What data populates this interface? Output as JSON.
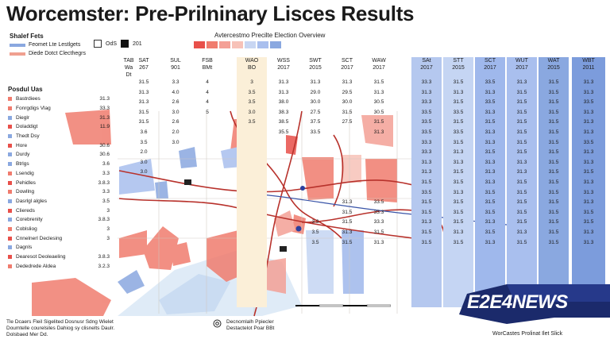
{
  "header": {
    "title": "Worcemster: Pre-Prilninary Lisces Results"
  },
  "legend": {
    "title": "Shalef Fets",
    "items": [
      {
        "label": "Feomet Lte Lestlgets",
        "color": "#8aa8e0"
      },
      {
        "label": "Diede Dotct Clecthegrs",
        "color": "#f0a090"
      }
    ]
  },
  "mini_legend": {
    "on_label": "OdS",
    "count_label": "201"
  },
  "overview": {
    "title": "Avtercestmo Precilte Election Overview",
    "swatches": [
      "#e8504a",
      "#f07c6e",
      "#f4a096",
      "#f7c2b8",
      "#c8d6f2",
      "#a9bfee",
      "#8aa8e0"
    ]
  },
  "columns": [
    {
      "head": [
        "TAB",
        "Wa",
        "Dt"
      ],
      "color": "#ffffff"
    },
    {
      "head": [
        "SAT",
        "267"
      ],
      "color": "#ffffff"
    },
    {
      "head": [
        "SUL",
        "901"
      ],
      "color": "#ffffff"
    },
    {
      "head": [
        "FSB",
        "BMt"
      ],
      "color": "#ffffff"
    },
    {
      "head": [
        "WAO",
        "BO"
      ],
      "color": "#fbefd8"
    },
    {
      "head": [
        "WSS",
        "2017"
      ],
      "color": "#ffffff"
    },
    {
      "head": [
        "SWT",
        "2015"
      ],
      "color": "#ffffff"
    },
    {
      "head": [
        "SCT",
        "2017"
      ],
      "color": "#ffffff"
    },
    {
      "head": [
        "WAW",
        "2017"
      ],
      "color": "#ffffff"
    },
    {
      "head": [
        "SAt",
        "2017"
      ],
      "color": "#b5c8ef"
    },
    {
      "head": [
        "STT",
        "2015"
      ],
      "color": "#c5d5f3"
    },
    {
      "head": [
        "SCT",
        "2017"
      ],
      "color": "#9fb8ec"
    },
    {
      "head": [
        "WUT",
        "2017"
      ],
      "color": "#a9bfee"
    },
    {
      "head": [
        "WAT",
        "2015"
      ],
      "color": "#8aa8e0"
    },
    {
      "head": [
        "WBT",
        "2011"
      ],
      "color": "#7c9cdc"
    }
  ],
  "rows": [
    [
      "",
      "31.5",
      "3.3",
      "4",
      "3",
      "31.3",
      "31.3",
      "31.3",
      "31.5",
      "33.3",
      "31.5",
      "33.5",
      "31.3",
      "31.5",
      "31.3"
    ],
    [
      "",
      "31.3",
      "4.0",
      "4",
      "3.5",
      "31.3",
      "29.0",
      "29.5",
      "31.3",
      "31.3",
      "31.3",
      "31.3",
      "31.5",
      "31.5",
      "31.3"
    ],
    [
      "",
      "31.3",
      "2.6",
      "4",
      "3.5",
      "38.0",
      "30.0",
      "30.0",
      "30.5",
      "33.3",
      "31.5",
      "33.5",
      "31.5",
      "31.5",
      "33.5"
    ],
    [
      "",
      "31.5",
      "3.0",
      "5",
      "3.0",
      "38.3",
      "27.5",
      "31.5",
      "30.5",
      "33.5",
      "33.5",
      "31.3",
      "31.5",
      "31.5",
      "31.3"
    ],
    [
      "",
      "31.5",
      "2.6",
      "",
      "3.5",
      "38.5",
      "37.5",
      "27.5",
      "31.5",
      "33.5",
      "31.5",
      "31.5",
      "31.5",
      "31.5",
      "31.3"
    ],
    [
      "",
      "3.6",
      "2.0",
      "",
      "",
      "35.5",
      "33.5",
      "",
      "31.3",
      "33.5",
      "33.5",
      "31.3",
      "31.5",
      "31.5",
      "31.3"
    ],
    [
      "",
      "3.5",
      "3.0",
      "",
      "",
      "",
      "",
      "",
      "",
      "33.3",
      "31.5",
      "31.3",
      "31.5",
      "31.5",
      "33.5"
    ],
    [
      "",
      "2.0",
      "",
      "",
      "",
      "",
      "",
      "",
      "",
      "33.3",
      "31.3",
      "31.5",
      "31.5",
      "31.5",
      "31.3"
    ],
    [
      "",
      "3.0",
      "",
      "",
      "",
      "",
      "",
      "",
      "",
      "31.3",
      "31.3",
      "31.3",
      "31.3",
      "31.5",
      "31.3"
    ],
    [
      "",
      "3.0",
      "",
      "",
      "",
      "",
      "",
      "",
      "",
      "31.3",
      "31.5",
      "31.3",
      "31.3",
      "31.5",
      "31.5"
    ],
    [
      "",
      "",
      "",
      "",
      "",
      "",
      "",
      "",
      "",
      "31.5",
      "31.5",
      "31.3",
      "31.5",
      "31.5",
      "31.3"
    ],
    [
      "",
      "",
      "",
      "",
      "",
      "",
      "",
      "",
      "",
      "33.5",
      "31.3",
      "31.5",
      "31.5",
      "31.5",
      "31.3"
    ],
    [
      "",
      "",
      "",
      "",
      "",
      "",
      "",
      "31.3",
      "33.5",
      "31.5",
      "31.5",
      "31.5",
      "31.5",
      "31.5",
      "31.3"
    ],
    [
      "",
      "",
      "",
      "",
      "",
      "",
      "",
      "31.5",
      "33.3",
      "31.5",
      "31.5",
      "31.5",
      "31.5",
      "31.5",
      "31.5"
    ],
    [
      "",
      "",
      "",
      "",
      "",
      "",
      "3.3",
      "31.5",
      "33.3",
      "31.3",
      "31.5",
      "31.3",
      "31.5",
      "31.5",
      "31.5"
    ],
    [
      "",
      "",
      "",
      "",
      "",
      "",
      "3.5",
      "31.3",
      "31.5",
      "31.5",
      "31.3",
      "31.5",
      "31.3",
      "31.5",
      "31.3"
    ],
    [
      "",
      "",
      "",
      "",
      "",
      "",
      "3.5",
      "31.5",
      "31.3",
      "31.5",
      "31.5",
      "31.3",
      "31.5",
      "31.5",
      "31.3"
    ]
  ],
  "sidebar": {
    "title": "Posdul Uas",
    "rows": [
      {
        "label": "Bastrdiees",
        "value": "31.3",
        "color": "#f07c6e"
      },
      {
        "label": "Fonrgdigs Vlag",
        "value": "33.3",
        "color": "#f07c6e"
      },
      {
        "label": "Dieglr",
        "value": "31.3",
        "color": "#8aa8e0"
      },
      {
        "label": "Doladdigt",
        "value": "11.9",
        "color": "#e8504a"
      },
      {
        "label": "Thedt Dsy",
        "value": "",
        "color": "#8aa8e0"
      },
      {
        "label": "Hore",
        "value": "30.6",
        "color": "#e8504a"
      },
      {
        "label": "Durdy",
        "value": "30.6",
        "color": "#8aa8e0"
      },
      {
        "label": "Btrlgs",
        "value": "3.6",
        "color": "#8aa8e0"
      },
      {
        "label": "Lsendig",
        "value": "3.3",
        "color": "#f07c6e"
      },
      {
        "label": "Pehidles",
        "value": "3.8.3",
        "color": "#e8504a"
      },
      {
        "label": "Dowllng",
        "value": "3.3",
        "color": "#f07c6e"
      },
      {
        "label": "Dasrlgl algles",
        "value": "3.5",
        "color": "#8aa8e0"
      },
      {
        "label": "Cliereds",
        "value": "3",
        "color": "#e8504a"
      },
      {
        "label": "Corebrenity",
        "value": "3.8.3",
        "color": "#8aa8e0"
      },
      {
        "label": "Coblsliog",
        "value": "3",
        "color": "#f07c6e"
      },
      {
        "label": "Cnnelnerl Declesing",
        "value": "3",
        "color": "#e8504a"
      },
      {
        "label": "Dagnls",
        "value": "",
        "color": "#8aa8e0"
      },
      {
        "label": "Dearesot Deoleaeling",
        "value": "3.8.3",
        "color": "#e8504a"
      },
      {
        "label": "Dededrede Aldea",
        "value": "3.2.3",
        "color": "#f07c6e"
      }
    ]
  },
  "source": {
    "line1": "Tle Dcaers Fleil Sigelited Dosnusr Sdng Wielet",
    "line2": "Doumtelle courelsiles Dahiog sy clisnelts Daulr.",
    "line3": "Dolsbaed Mer Dd.",
    "right_line1": "Decnomlalh Ppiecler",
    "right_line2": "Destactelot Poar BBt"
  },
  "badge": {
    "text": "E2E4NEWS"
  },
  "footer": {
    "right": "WorCastes Prolinat Ilet Slick"
  }
}
